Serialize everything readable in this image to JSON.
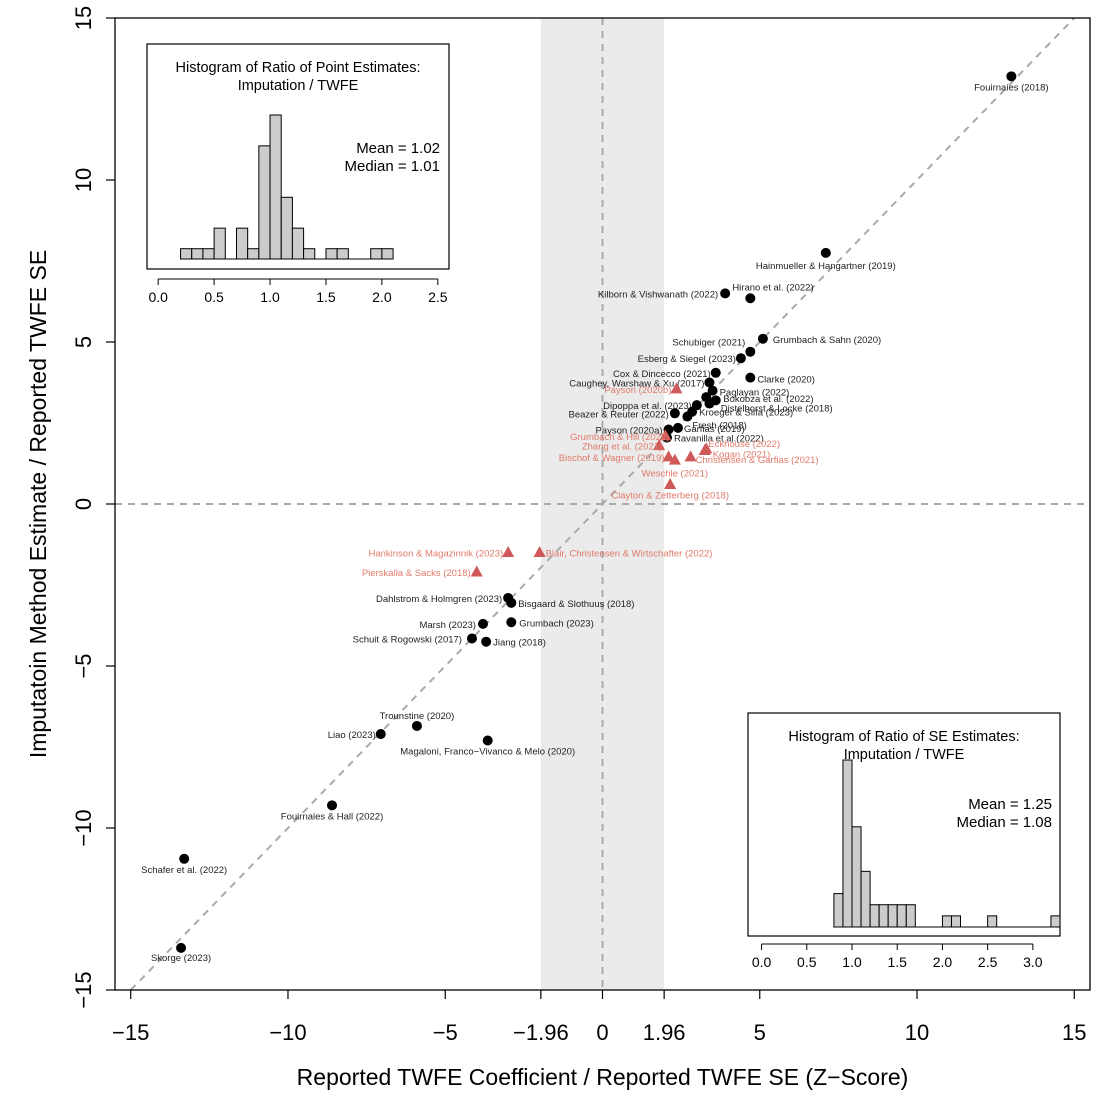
{
  "colors": {
    "published": "#000000",
    "not_significant": "#d05a5a",
    "label_red": "#e07a6a",
    "band": "#ebebeb",
    "reference_line": "#aaaaaa",
    "hist_bar": "#cccccc"
  },
  "chart_data": [
    {
      "type": "scatter",
      "title": "",
      "xlabel": "Reported TWFE Coefficient / Reported TWFE SE (Z−Score)",
      "ylabel": "Imputatoin Method Estimate / Reported TWFE SE",
      "xlim": [
        -15.5,
        15.5
      ],
      "ylim": [
        -15,
        15
      ],
      "xticks": [
        -15,
        -10,
        -5,
        -1.96,
        0,
        1.96,
        5,
        10,
        15
      ],
      "xtick_labels": [
        "−15",
        "−10",
        "−5",
        "−1.96",
        "0",
        "1.96",
        "5",
        "10",
        "15"
      ],
      "yticks": [
        -15,
        -10,
        -5,
        0,
        5,
        10,
        15
      ],
      "ytick_labels": [
        "−15",
        "−10",
        "−5",
        "0",
        "5",
        "10",
        "15"
      ],
      "shaded_band": [
        -1.96,
        1.96
      ],
      "reference_lines": [
        "y = x",
        "x = 0",
        "y = 0"
      ],
      "grid": false,
      "series": [
        {
          "marker": "circle",
          "points": [
            {
              "x": 13.0,
              "y": 13.2,
              "label": "Fouirnaies (2018)",
              "anchor": "middle",
              "dx": 0,
              "dy": 14
            },
            {
              "x": 7.1,
              "y": 7.75,
              "label": "Hainmueller & Hangartner (2019)",
              "anchor": "middle",
              "dx": 0,
              "dy": 16
            },
            {
              "x": 3.9,
              "y": 6.5,
              "label": "Kilborn & Vishwanath (2022)",
              "anchor": "end",
              "dx": -7,
              "dy": 4
            },
            {
              "x": 4.7,
              "y": 6.35,
              "label": "Hirano et al. (2022)",
              "anchor": "start",
              "dx": -18,
              "dy": -8
            },
            {
              "x": 5.1,
              "y": 5.1,
              "label": "Grumbach & Sahn (2020)",
              "anchor": "start",
              "dx": 10,
              "dy": 4
            },
            {
              "x": 4.7,
              "y": 4.7,
              "label": "Schubiger (2021)",
              "anchor": "end",
              "dx": -5,
              "dy": -6
            },
            {
              "x": 4.4,
              "y": 4.5,
              "label": "Esberg & Siegel (2023)",
              "anchor": "end",
              "dx": -5,
              "dy": 4
            },
            {
              "x": 3.6,
              "y": 4.05,
              "label": "Cox & Dincecco (2021)",
              "anchor": "end",
              "dx": -5,
              "dy": 4
            },
            {
              "x": 4.7,
              "y": 3.9,
              "label": "Clarke (2020)",
              "anchor": "start",
              "dx": 7,
              "dy": 5
            },
            {
              "x": 3.4,
              "y": 3.75,
              "label": "Caughey, Warshaw & Xu (2017)",
              "anchor": "end",
              "dx": -5,
              "dy": 4
            },
            {
              "x": 3.5,
              "y": 3.5,
              "label": "Paglayan (2022)",
              "anchor": "start",
              "dx": 7,
              "dy": 5
            },
            {
              "x": 3.3,
              "y": 3.3,
              "label": "Bokobza et al. (2022)",
              "anchor": "start",
              "dx": 17,
              "dy": 5
            },
            {
              "x": 3.6,
              "y": 3.2,
              "label": "Distelhorst & Locke (2018)",
              "anchor": "start",
              "dx": 5,
              "dy": 11
            },
            {
              "x": 3.4,
              "y": 3.1,
              "label": "",
              "anchor": "start",
              "dx": 0,
              "dy": 0
            },
            {
              "x": 3.0,
              "y": 3.05,
              "label": "Dipoppa et al. (2023)",
              "anchor": "end",
              "dx": -5,
              "dy": 4
            },
            {
              "x": 2.85,
              "y": 2.85,
              "label": "Kroeger & Silfa (2023)",
              "anchor": "start",
              "dx": 7,
              "dy": 4
            },
            {
              "x": 2.7,
              "y": 2.7,
              "label": "Fresh (2018)",
              "anchor": "start",
              "dx": 5,
              "dy": 12
            },
            {
              "x": 2.3,
              "y": 2.8,
              "label": "Beazer & Reuter (2022)",
              "anchor": "end",
              "dx": -6,
              "dy": 4
            },
            {
              "x": 2.4,
              "y": 2.35,
              "label": "Garfias (2019)",
              "anchor": "start",
              "dx": 6,
              "dy": 4
            },
            {
              "x": 2.1,
              "y": 2.3,
              "label": "Payson (2020a)",
              "anchor": "end",
              "dx": -6,
              "dy": 4
            },
            {
              "x": 2.05,
              "y": 2.05,
              "label": "Ravanilla et al.(2022)",
              "anchor": "start",
              "dx": 7,
              "dy": 4
            },
            {
              "x": -3.0,
              "y": -2.9,
              "label": "Dahlstrom & Holmgren (2023)",
              "anchor": "end",
              "dx": -6,
              "dy": 4
            },
            {
              "x": -2.9,
              "y": -3.05,
              "label": "Bisgaard & Slothuus (2018)",
              "anchor": "start",
              "dx": 7,
              "dy": 4
            },
            {
              "x": -3.8,
              "y": -3.7,
              "label": "Marsh (2023)",
              "anchor": "end",
              "dx": -7,
              "dy": 4
            },
            {
              "x": -2.9,
              "y": -3.65,
              "label": "Grumbach (2023)",
              "anchor": "start",
              "dx": 8,
              "dy": 4
            },
            {
              "x": -4.15,
              "y": -4.15,
              "label": "Schuit & Rogowski (2017)",
              "anchor": "end",
              "dx": -10,
              "dy": 4
            },
            {
              "x": -3.7,
              "y": -4.25,
              "label": "Jiang (2018)",
              "anchor": "start",
              "dx": 7,
              "dy": 4
            },
            {
              "x": -5.9,
              "y": -6.85,
              "label": "Trounstine (2020)",
              "anchor": "middle",
              "dx": 0,
              "dy": -7
            },
            {
              "x": -7.05,
              "y": -7.1,
              "label": "Liao (2023)",
              "anchor": "end",
              "dx": -5,
              "dy": 4
            },
            {
              "x": -3.65,
              "y": -7.3,
              "label": "Magaloni, Franco−Vivanco & Melo (2020)",
              "anchor": "middle",
              "dx": 0,
              "dy": 14
            },
            {
              "x": -8.6,
              "y": -9.3,
              "label": "Fouirnaies & Hall (2022)",
              "anchor": "middle",
              "dx": 0,
              "dy": 14
            },
            {
              "x": -13.3,
              "y": -10.95,
              "label": "Schafer et al. (2022)",
              "anchor": "middle",
              "dx": 0,
              "dy": 14
            },
            {
              "x": -13.4,
              "y": -13.7,
              "label": "Skorge (2023)",
              "anchor": "middle",
              "dx": 0,
              "dy": 13
            }
          ]
        },
        {
          "marker": "triangle",
          "points": [
            {
              "x": 2.35,
              "y": 3.55,
              "label": "Payson (2020b)",
              "anchor": "end",
              "dx": -5,
              "dy": 4
            },
            {
              "x": 2.0,
              "y": 2.1,
              "label": "Grumbach & Hill (2022)",
              "anchor": "end",
              "dx": 4,
              "dy": 4
            },
            {
              "x": 3.3,
              "y": 1.7,
              "label": "Eckhouse (2022)",
              "anchor": "start",
              "dx": 2,
              "dy": -2
            },
            {
              "x": 1.8,
              "y": 1.8,
              "label": "Zhang et al. (2021)",
              "anchor": "end",
              "dx": 3,
              "dy": 4
            },
            {
              "x": 3.25,
              "y": 1.65,
              "label": "Kogan (2021)",
              "anchor": "start",
              "dx": 8,
              "dy": 7
            },
            {
              "x": 2.1,
              "y": 1.45,
              "label": "Bischof & Wagner (2019)",
              "anchor": "end",
              "dx": -4,
              "dy": 4
            },
            {
              "x": 2.8,
              "y": 1.45,
              "label": "Christensen & Garfias (2021)",
              "anchor": "start",
              "dx": 5,
              "dy": 6
            },
            {
              "x": 2.3,
              "y": 1.35,
              "label": "Weschle (2021)",
              "anchor": "middle",
              "dx": 0,
              "dy": 16
            },
            {
              "x": 2.15,
              "y": 0.6,
              "label": "Clayton & Zetterberg (2018)",
              "anchor": "middle",
              "dx": 0,
              "dy": 14
            },
            {
              "x": -3.0,
              "y": -1.5,
              "label": "Hankinson & Magazinnik (2023)",
              "anchor": "end",
              "dx": -5,
              "dy": 4
            },
            {
              "x": -2.0,
              "y": -1.5,
              "label": "Blair, Christensen & Wirtschafter (2022)",
              "anchor": "start",
              "dx": 6,
              "dy": 4
            },
            {
              "x": -4.0,
              "y": -2.1,
              "label": "Pierskalla & Sacks (2018)",
              "anchor": "end",
              "dx": -6,
              "dy": 4
            }
          ]
        }
      ]
    },
    {
      "type": "bar",
      "title": "Histogram of Ratio of Point Estimates:",
      "subtitle": "Imputation / TWFE",
      "stats": [
        "Mean = 1.02",
        "Median = 1.01"
      ],
      "xlim": [
        -0.1,
        2.6
      ],
      "xticks": [
        0.0,
        0.5,
        1.0,
        1.5,
        2.0,
        2.5
      ],
      "xtick_labels": [
        "0.0",
        "0.5",
        "1.0",
        "1.5",
        "2.0",
        "2.5"
      ],
      "bin_width": 0.1,
      "bin_starts": [
        0.2,
        0.3,
        0.4,
        0.5,
        0.6,
        0.7,
        0.8,
        0.9,
        1.0,
        1.1,
        1.2,
        1.3,
        1.4,
        1.5,
        1.6,
        1.7,
        1.8,
        1.9,
        2.0
      ],
      "values": [
        1,
        1,
        1,
        3,
        0,
        3,
        1,
        11,
        14,
        6,
        3,
        1,
        0,
        1,
        1,
        0,
        0,
        1,
        1
      ],
      "ymax": 14
    },
    {
      "type": "bar",
      "title": "Histogram of Ratio of SE Estimates:",
      "subtitle": "Imputation / TWFE",
      "stats": [
        "Mean = 1.25",
        "Median = 1.08"
      ],
      "xlim": [
        -0.15,
        3.3
      ],
      "xticks": [
        0.0,
        0.5,
        1.0,
        1.5,
        2.0,
        2.5,
        3.0
      ],
      "xtick_labels": [
        "0.0",
        "0.5",
        "1.0",
        "1.5",
        "2.0",
        "2.5",
        "3.0"
      ],
      "bin_width": 0.1,
      "bin_starts": [
        0.8,
        0.9,
        1.0,
        1.1,
        1.2,
        1.3,
        1.4,
        1.5,
        1.6,
        1.7,
        1.8,
        1.9,
        2.0,
        2.1,
        2.2,
        2.3,
        2.4,
        2.5,
        2.6,
        2.7,
        2.8,
        2.9,
        3.0,
        3.1,
        3.2
      ],
      "values": [
        3,
        15,
        9,
        5,
        2,
        2,
        2,
        2,
        2,
        0,
        0,
        0,
        1,
        1,
        0,
        0,
        0,
        1,
        0,
        0,
        0,
        0,
        0,
        0,
        1
      ],
      "ymax": 15
    }
  ]
}
